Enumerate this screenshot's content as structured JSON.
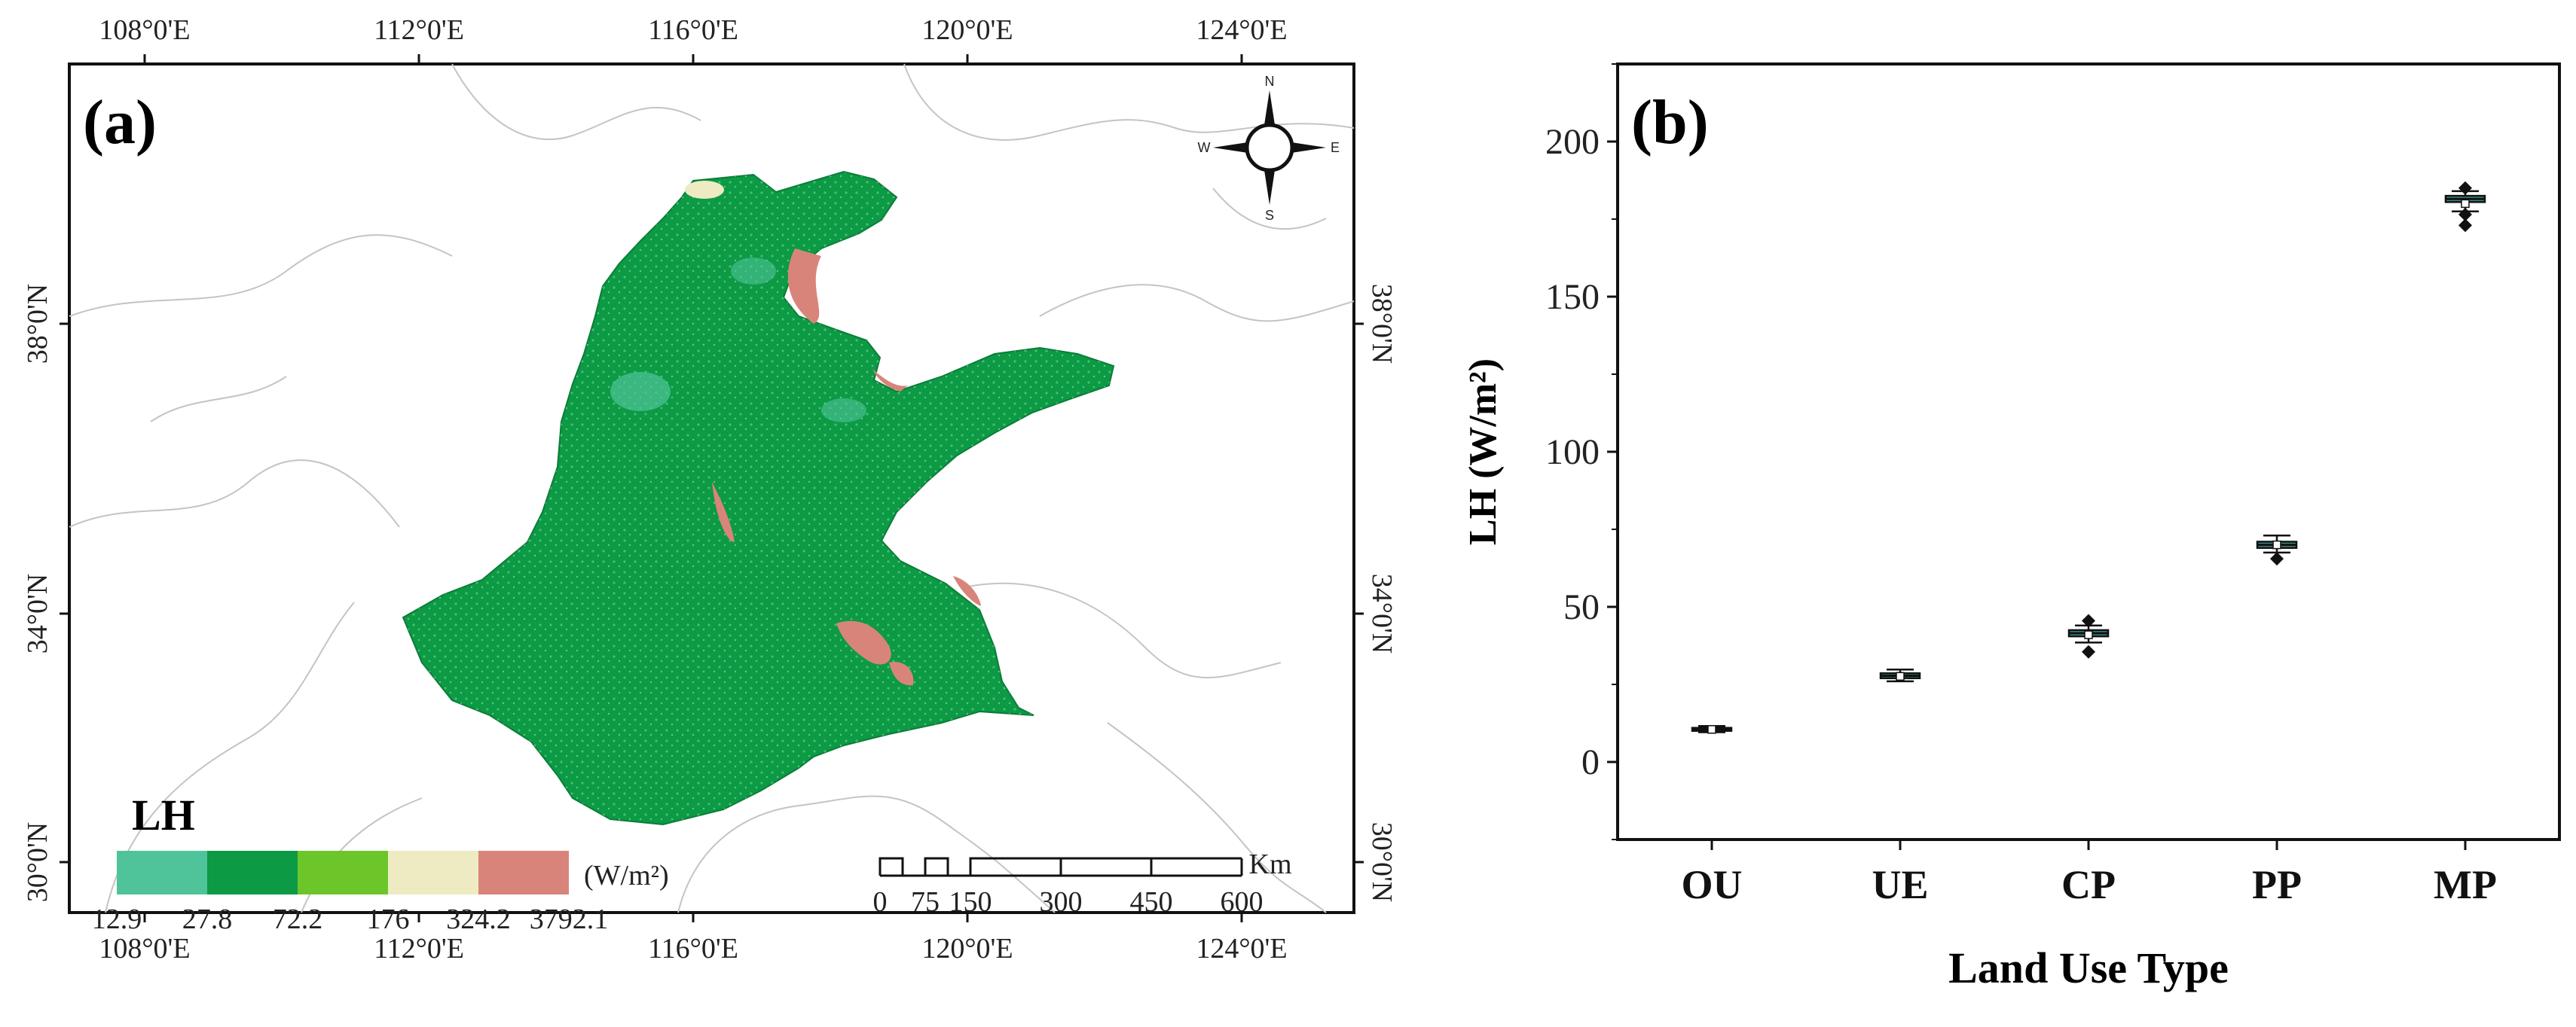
{
  "panel_a": {
    "label": "(a)",
    "top_lon_ticks": [
      "108°0'E",
      "112°0'E",
      "116°0'E",
      "120°0'E",
      "124°0'E"
    ],
    "bottom_lon_ticks": [
      "108°0'E",
      "112°0'E",
      "116°0'E",
      "120°0'E",
      "124°0'E"
    ],
    "lat_ticks": [
      "38°0'N",
      "34°0'N",
      "30°0'N"
    ],
    "compass": {
      "n": "N",
      "s": "S",
      "e": "E",
      "w": "W"
    },
    "legend": {
      "title": "LH",
      "unit": "(W/m²)",
      "colors": [
        "#4fc49a",
        "#0c9a45",
        "#6cc62a",
        "#eeebc3",
        "#d9847b"
      ],
      "breaks": [
        "12.9",
        "27.8",
        "72.2",
        "176",
        "324.2",
        "3792.1"
      ]
    },
    "scale_bar": {
      "unit": "Km",
      "labels": [
        "0",
        "75",
        "150",
        "300",
        "450",
        "600"
      ]
    }
  },
  "chart_data": {
    "type": "box",
    "panel_label": "(b)",
    "title": "",
    "xlabel": "Land Use Type",
    "ylabel": "LH (W/m²)",
    "ylim": [
      -25,
      225
    ],
    "yticks": [
      0,
      50,
      100,
      150,
      200
    ],
    "categories": [
      "OU",
      "UE",
      "CP",
      "PP",
      "MP"
    ],
    "box_color": "#3a8f8a",
    "boxes": [
      {
        "name": "OU",
        "min": 9.6,
        "q1": 10.2,
        "median": 10.6,
        "q3": 11.0,
        "max": 11.6,
        "mean": 10.5,
        "outliers": []
      },
      {
        "name": "UE",
        "min": 26.0,
        "q1": 27.0,
        "median": 27.8,
        "q3": 28.6,
        "max": 29.8,
        "mean": 27.6,
        "outliers": []
      },
      {
        "name": "CP",
        "min": 38.5,
        "q1": 40.5,
        "median": 41.5,
        "q3": 42.5,
        "max": 44.0,
        "mean": 41.0,
        "outliers": [
          35.5,
          45.5
        ]
      },
      {
        "name": "PP",
        "min": 67.5,
        "q1": 69.0,
        "median": 70.0,
        "q3": 71.0,
        "max": 73.0,
        "mean": 70.0,
        "outliers": [
          65.5
        ]
      },
      {
        "name": "MP",
        "min": 177.5,
        "q1": 180.5,
        "median": 181.5,
        "q3": 182.5,
        "max": 184.0,
        "mean": 180.0,
        "outliers": [
          173.0,
          176.5,
          185.0
        ]
      }
    ]
  }
}
